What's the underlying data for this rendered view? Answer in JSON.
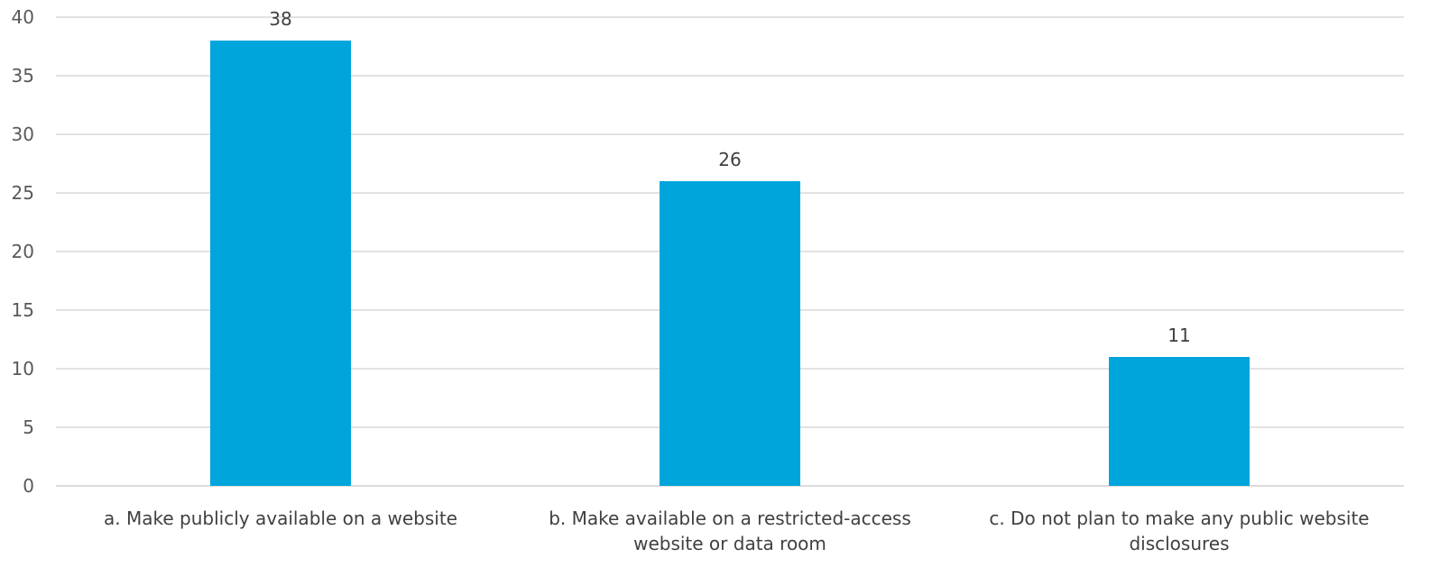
{
  "chart_data": {
    "type": "bar",
    "categories": [
      [
        "a. Make publicly available on a website"
      ],
      [
        "b. Make available on a restricted-access",
        "website or data room"
      ],
      [
        "c. Do not plan to make any public website",
        "disclosures"
      ]
    ],
    "values": [
      38,
      26,
      11
    ],
    "data_labels": [
      "38",
      "26",
      "11"
    ],
    "title": "",
    "xlabel": "",
    "ylabel": "",
    "ylim": [
      0,
      40
    ],
    "yticks": [
      0,
      5,
      10,
      15,
      20,
      25,
      30,
      35,
      40
    ],
    "grid": true,
    "legend": "none",
    "bar_color": "#00a5dc"
  }
}
